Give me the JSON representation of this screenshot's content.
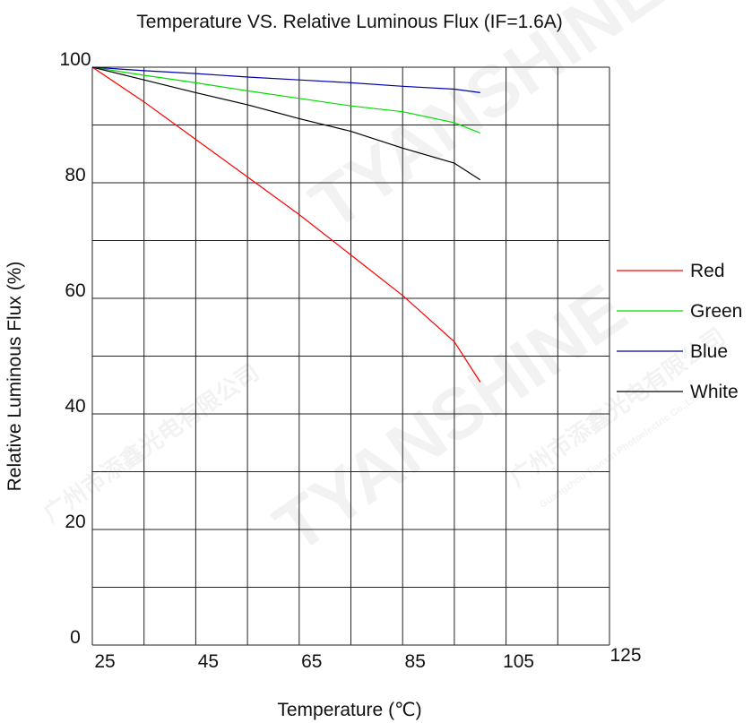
{
  "watermark": {
    "brand": "TYANSHINE",
    "company_cn": "广州市添鑫光电有限公司",
    "company_en": "Guangzhou Tianxin Photoelectric Co.,Ltd."
  },
  "chart_data": {
    "type": "line",
    "title": "Temperature  VS.  Relative Luminous Flux (IF=1.6A)",
    "xlabel": "Temperature (℃)",
    "ylabel": "Relative Luminous Flux (%)",
    "xlim": [
      25,
      125
    ],
    "ylim": [
      0,
      100
    ],
    "xticks": [
      "25",
      "45",
      "65",
      "85",
      "105",
      "125"
    ],
    "yticks": [
      "0",
      "20",
      "40",
      "60",
      "80",
      "100"
    ],
    "grid": true,
    "legend_position": "right",
    "x": [
      25,
      35,
      45,
      55,
      65,
      75,
      85,
      95,
      100
    ],
    "series": [
      {
        "name": "Red",
        "color": "#ff0000",
        "values": [
          100,
          94,
          87.5,
          81,
          74.5,
          67.5,
          60.5,
          52.5,
          45.5
        ]
      },
      {
        "name": "Green",
        "color": "#00dd00",
        "values": [
          100,
          98.6,
          97.3,
          95.9,
          94.6,
          93.3,
          92.3,
          90.4,
          88.6
        ]
      },
      {
        "name": "Blue",
        "color": "#0000aa",
        "values": [
          100,
          99.4,
          98.9,
          98.3,
          97.8,
          97.3,
          96.7,
          96.2,
          95.6
        ]
      },
      {
        "name": "White",
        "color": "#000000",
        "values": [
          100,
          97.8,
          95.6,
          93.5,
          91.1,
          88.9,
          86.0,
          83.4,
          80.5
        ]
      }
    ]
  }
}
